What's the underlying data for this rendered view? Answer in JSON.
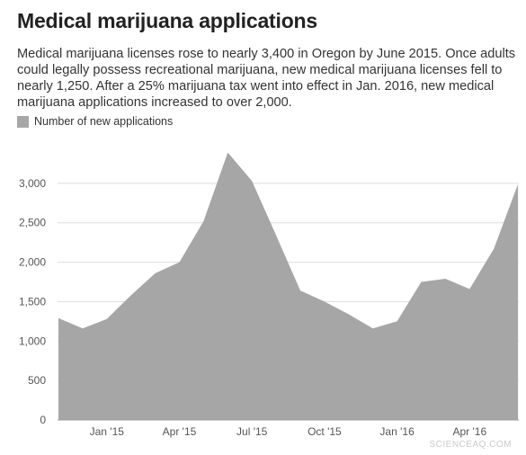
{
  "title": "Medical marijuana applications",
  "subtitle": "Medical marijuana licenses rose to nearly 3,400 in Oregon by June 2015. Once adults could legally possess recreational marijuana, new medical marijuana licenses fell to nearly 1,250. After a 25% marijuana tax went into effect in Jan. 2016, new medical marijuana applications increased to over 2,000.",
  "watermark": "SCIENCEAQ.COM",
  "colors": {
    "area": "#a6a6a6",
    "grid": "#dddddd",
    "axis": "#999999"
  },
  "chart_data": {
    "type": "area",
    "legend": {
      "label": "Number of new applications",
      "placement": "top-left"
    },
    "x": [
      "2014-11",
      "2014-12",
      "2015-01",
      "2015-02",
      "2015-03",
      "2015-04",
      "2015-05",
      "2015-06",
      "2015-07",
      "2015-08",
      "2015-09",
      "2015-10",
      "2015-11",
      "2015-12",
      "2016-01",
      "2016-02",
      "2016-03",
      "2016-04",
      "2016-05",
      "2016-06"
    ],
    "series": [
      {
        "name": "Number of new applications",
        "values": [
          1290,
          1160,
          1280,
          1580,
          1860,
          2000,
          2520,
          3390,
          3030,
          2340,
          1640,
          1500,
          1340,
          1160,
          1250,
          1750,
          1790,
          1660,
          2170,
          2990
        ]
      }
    ],
    "xticks": [
      {
        "x": "2015-01",
        "label": "Jan '15"
      },
      {
        "x": "2015-04",
        "label": "Apr '15"
      },
      {
        "x": "2015-07",
        "label": "Jul '15"
      },
      {
        "x": "2015-10",
        "label": "Oct '15"
      },
      {
        "x": "2016-01",
        "label": "Jan '16"
      },
      {
        "x": "2016-04",
        "label": "Apr '16"
      }
    ],
    "yticks": [
      0,
      500,
      1000,
      1500,
      2000,
      2500,
      3000
    ],
    "ytick_labels": [
      "0",
      "500",
      "1,000",
      "1,500",
      "2,000",
      "2,500",
      "3,000"
    ],
    "ylim": [
      0,
      3500
    ],
    "grid": true
  }
}
